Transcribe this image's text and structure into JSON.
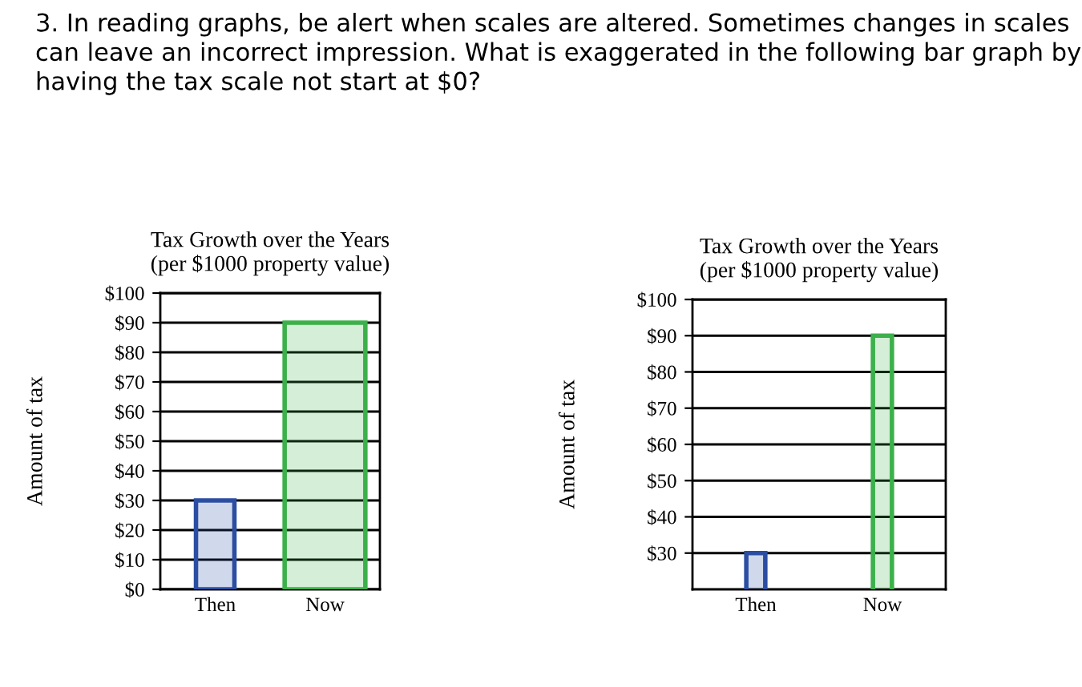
{
  "chart_data": [
    {
      "type": "other",
      "title": "3. In reading graphs, be alert when scales are altered. Sometimes changes in scales can leave an incorrect impression. What is exaggerated in the following bar graph by having the tax scale not start at $0?"
    },
    {
      "type": "bar",
      "title": "Tax Growth over the Years\n(per $1000 property value)",
      "ylabel": "Amount of tax",
      "categories": [
        "Then",
        "Now"
      ],
      "values": [
        30,
        90
      ],
      "colors": [
        "#2b4ea2",
        "#3cb04a"
      ],
      "ylim": [
        0,
        100
      ],
      "yticks": [
        {
          "value": 0,
          "label": "$0"
        },
        {
          "value": 10,
          "label": "$10"
        },
        {
          "value": 20,
          "label": "$20"
        },
        {
          "value": 30,
          "label": "$30"
        },
        {
          "value": 40,
          "label": "$40"
        },
        {
          "value": 50,
          "label": "$50"
        },
        {
          "value": 60,
          "label": "$60"
        },
        {
          "value": 70,
          "label": "$70"
        },
        {
          "value": 80,
          "label": "$80"
        },
        {
          "value": 90,
          "label": "$90"
        },
        {
          "value": 100,
          "label": "$100"
        }
      ],
      "grid": "y",
      "legend": false
    },
    {
      "type": "bar",
      "title": "Tax Growth over the Years\n(per $1000 property value)",
      "ylabel": "Amount of tax",
      "categories": [
        "Then",
        "Now"
      ],
      "values": [
        30,
        90
      ],
      "colors": [
        "#2b4ea2",
        "#3cb04a"
      ],
      "ylim": [
        20,
        100
      ],
      "yticks": [
        {
          "value": 30,
          "label": "$30"
        },
        {
          "value": 40,
          "label": "$40"
        },
        {
          "value": 50,
          "label": "$50"
        },
        {
          "value": 60,
          "label": "$60"
        },
        {
          "value": 70,
          "label": "$70"
        },
        {
          "value": 80,
          "label": "$80"
        },
        {
          "value": 90,
          "label": "$90"
        },
        {
          "value": 100,
          "label": "$100"
        }
      ],
      "grid": "y",
      "legend": false
    }
  ]
}
